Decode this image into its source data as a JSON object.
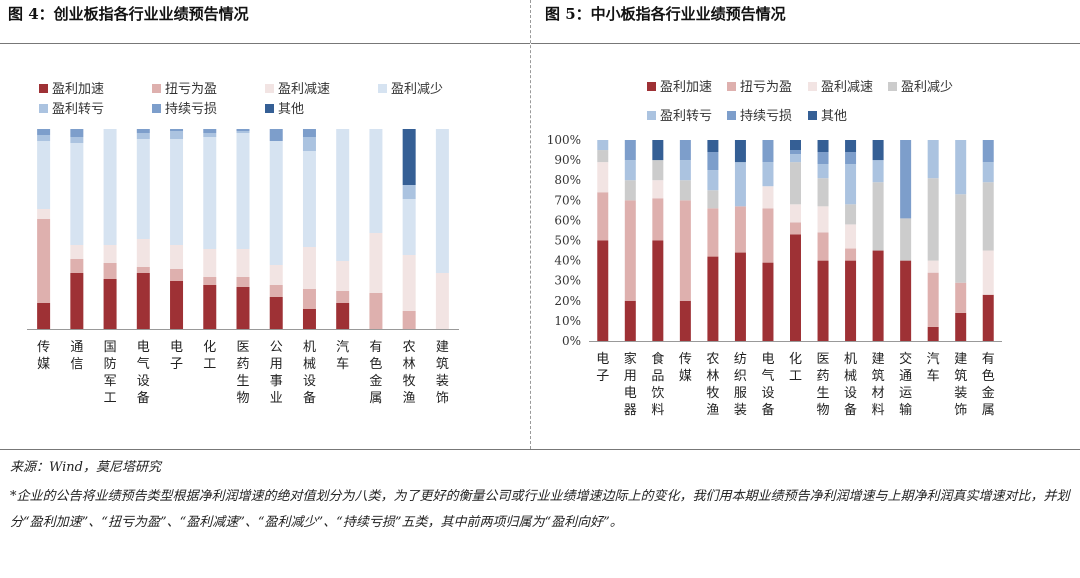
{
  "left_title": "图 4：创业板指各行业业绩预告情况",
  "right_title": "图 5：中小板指各行业业绩预告情况",
  "source": "来源：Wind，莫尼塔研究",
  "footnote": "*企业的公告将业绩预告类型根据净利润增速的绝对值划分为八类，为了更好的衡量公司或行业业绩增速边际上的变化，我们用本期业绩预告净利润增速与上期净利润真实增速对比，并划分“盈利加速”、“扭亏为盈”、“盈利减速”、“盈利减少”、“持续亏损”五类，其中前两项归属为“盈利向好”。",
  "colors": {
    "盈利加速": "#9e3135",
    "扭亏为盈": "#deb0ae",
    "盈利减速": "#f2e4e3",
    "盈利减少": "#d6e3f1",
    "盈利减少_right": "#cccccc",
    "盈利转亏": "#abc3e0",
    "持续亏损": "#7d9ecb",
    "其他": "#355f95"
  },
  "chart_data": [
    {
      "type": "bar",
      "stacked": true,
      "title": "",
      "ylim": [
        0,
        100
      ],
      "y_ticks_visible": false,
      "legend": [
        "盈利加速",
        "扭亏为盈",
        "盈利减速",
        "盈利减少",
        "盈利转亏",
        "持续亏损",
        "其他"
      ],
      "categories": [
        "传媒",
        "通信",
        "国防军工",
        "电气设备",
        "电子",
        "化工",
        "医药生物",
        "公用事业",
        "机械设备",
        "汽车",
        "有色金属",
        "农林牧渔",
        "建筑装饰"
      ],
      "series": [
        {
          "name": "盈利加速",
          "values": [
            13,
            28,
            25,
            28,
            24,
            22,
            21,
            16,
            10,
            13,
            0,
            0,
            0
          ]
        },
        {
          "name": "扭亏为盈",
          "values": [
            42,
            7,
            8,
            3,
            6,
            4,
            5,
            6,
            10,
            6,
            18,
            9,
            0
          ]
        },
        {
          "name": "盈利减速",
          "values": [
            5,
            7,
            9,
            14,
            12,
            14,
            14,
            10,
            21,
            15,
            30,
            28,
            28
          ]
        },
        {
          "name": "盈利减少",
          "values": [
            34,
            51,
            58,
            50,
            53,
            56,
            58,
            62,
            48,
            66,
            52,
            28,
            72
          ]
        },
        {
          "name": "盈利转亏",
          "values": [
            3,
            3,
            0,
            3,
            4,
            2,
            1,
            0,
            7,
            0,
            0,
            7,
            0
          ]
        },
        {
          "name": "持续亏损",
          "values": [
            3,
            4,
            0,
            2,
            1,
            2,
            1,
            6,
            4,
            0,
            0,
            0,
            0
          ]
        },
        {
          "name": "其他",
          "values": [
            0,
            0,
            0,
            0,
            0,
            0,
            0,
            0,
            0,
            0,
            0,
            28,
            0
          ]
        }
      ]
    },
    {
      "type": "bar",
      "stacked": true,
      "title": "",
      "ylim": [
        0,
        100
      ],
      "y_ticks": [
        "0%",
        "10%",
        "20%",
        "30%",
        "40%",
        "50%",
        "60%",
        "70%",
        "80%",
        "90%",
        "100%"
      ],
      "legend": [
        "盈利加速",
        "扭亏为盈",
        "盈利减速",
        "盈利减少",
        "盈利转亏",
        "持续亏损",
        "其他"
      ],
      "categories": [
        "电子",
        "家用电器",
        "食品饮料",
        "传媒",
        "农林牧渔",
        "纺织服装",
        "电气设备",
        "化工",
        "医药生物",
        "机械设备",
        "建筑材料",
        "交通运输",
        "汽车",
        "建筑装饰",
        "有色金属"
      ],
      "series": [
        {
          "name": "盈利加速",
          "values": [
            50,
            20,
            50,
            20,
            42,
            44,
            39,
            53,
            40,
            40,
            45,
            40,
            7,
            14,
            23
          ]
        },
        {
          "name": "扭亏为盈",
          "values": [
            24,
            50,
            21,
            50,
            24,
            23,
            27,
            6,
            14,
            6,
            0,
            0,
            27,
            15,
            0
          ]
        },
        {
          "name": "盈利减速",
          "values": [
            15,
            0,
            9,
            0,
            0,
            0,
            11,
            9,
            13,
            12,
            0,
            0,
            6,
            0,
            22
          ]
        },
        {
          "name": "盈利减少",
          "values": [
            6,
            10,
            10,
            10,
            9,
            0,
            0,
            21,
            14,
            10,
            34,
            21,
            41,
            44,
            34
          ]
        },
        {
          "name": "盈利转亏",
          "values": [
            5,
            10,
            0,
            10,
            10,
            22,
            12,
            4,
            7,
            20,
            11,
            0,
            19,
            27,
            10
          ]
        },
        {
          "name": "持续亏损",
          "values": [
            0,
            10,
            0,
            10,
            9,
            0,
            11,
            2,
            6,
            6,
            0,
            39,
            0,
            0,
            11
          ]
        },
        {
          "name": "其他",
          "values": [
            0,
            0,
            10,
            0,
            6,
            11,
            0,
            5,
            6,
            6,
            10,
            0,
            0,
            0,
            0
          ]
        }
      ]
    }
  ]
}
